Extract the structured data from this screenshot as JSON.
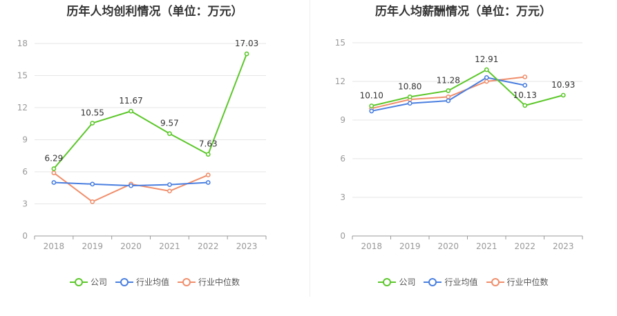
{
  "chart_data": [
    {
      "type": "line",
      "title": "历年人均创利情况（单位：万元）",
      "categories": [
        "2018",
        "2019",
        "2020",
        "2021",
        "2022",
        "2023"
      ],
      "ylim": [
        0,
        18
      ],
      "yticks": [
        0,
        3,
        6,
        9,
        12,
        15,
        18
      ],
      "grid": true,
      "legend_position": "bottom",
      "series": [
        {
          "name": "公司",
          "color": "#5cc72a",
          "values": [
            6.29,
            10.55,
            11.67,
            9.57,
            7.63,
            17.03
          ],
          "labels": [
            "6.29",
            "10.55",
            "11.67",
            "9.57",
            "7.63",
            "17.03"
          ]
        },
        {
          "name": "行业均值",
          "color": "#4a7fe0",
          "values": [
            5.0,
            4.85,
            4.7,
            4.8,
            5.0,
            null
          ]
        },
        {
          "name": "行业中位数",
          "color": "#f08e6b",
          "values": [
            5.9,
            3.2,
            4.85,
            4.2,
            5.7,
            null
          ]
        }
      ]
    },
    {
      "type": "line",
      "title": "历年人均薪酬情况（单位：万元）",
      "categories": [
        "2018",
        "2019",
        "2020",
        "2021",
        "2022",
        "2023"
      ],
      "ylim": [
        0,
        15
      ],
      "yticks": [
        0,
        3,
        6,
        9,
        12,
        15
      ],
      "grid": true,
      "legend_position": "bottom",
      "series": [
        {
          "name": "公司",
          "color": "#5cc72a",
          "values": [
            10.1,
            10.8,
            11.28,
            12.91,
            10.13,
            10.93
          ],
          "labels": [
            "10.10",
            "10.80",
            "11.28",
            "12.91",
            "10.13",
            "10.93"
          ]
        },
        {
          "name": "行业均值",
          "color": "#4a7fe0",
          "values": [
            9.7,
            10.3,
            10.5,
            12.3,
            11.7,
            null
          ]
        },
        {
          "name": "行业中位数",
          "color": "#f08e6b",
          "values": [
            9.9,
            10.6,
            10.8,
            12.0,
            12.35,
            null
          ]
        }
      ]
    }
  ],
  "legend": {
    "items": [
      {
        "label": "公司",
        "color": "#5cc72a"
      },
      {
        "label": "行业均值",
        "color": "#4a7fe0"
      },
      {
        "label": "行业中位数",
        "color": "#f08e6b"
      }
    ]
  }
}
